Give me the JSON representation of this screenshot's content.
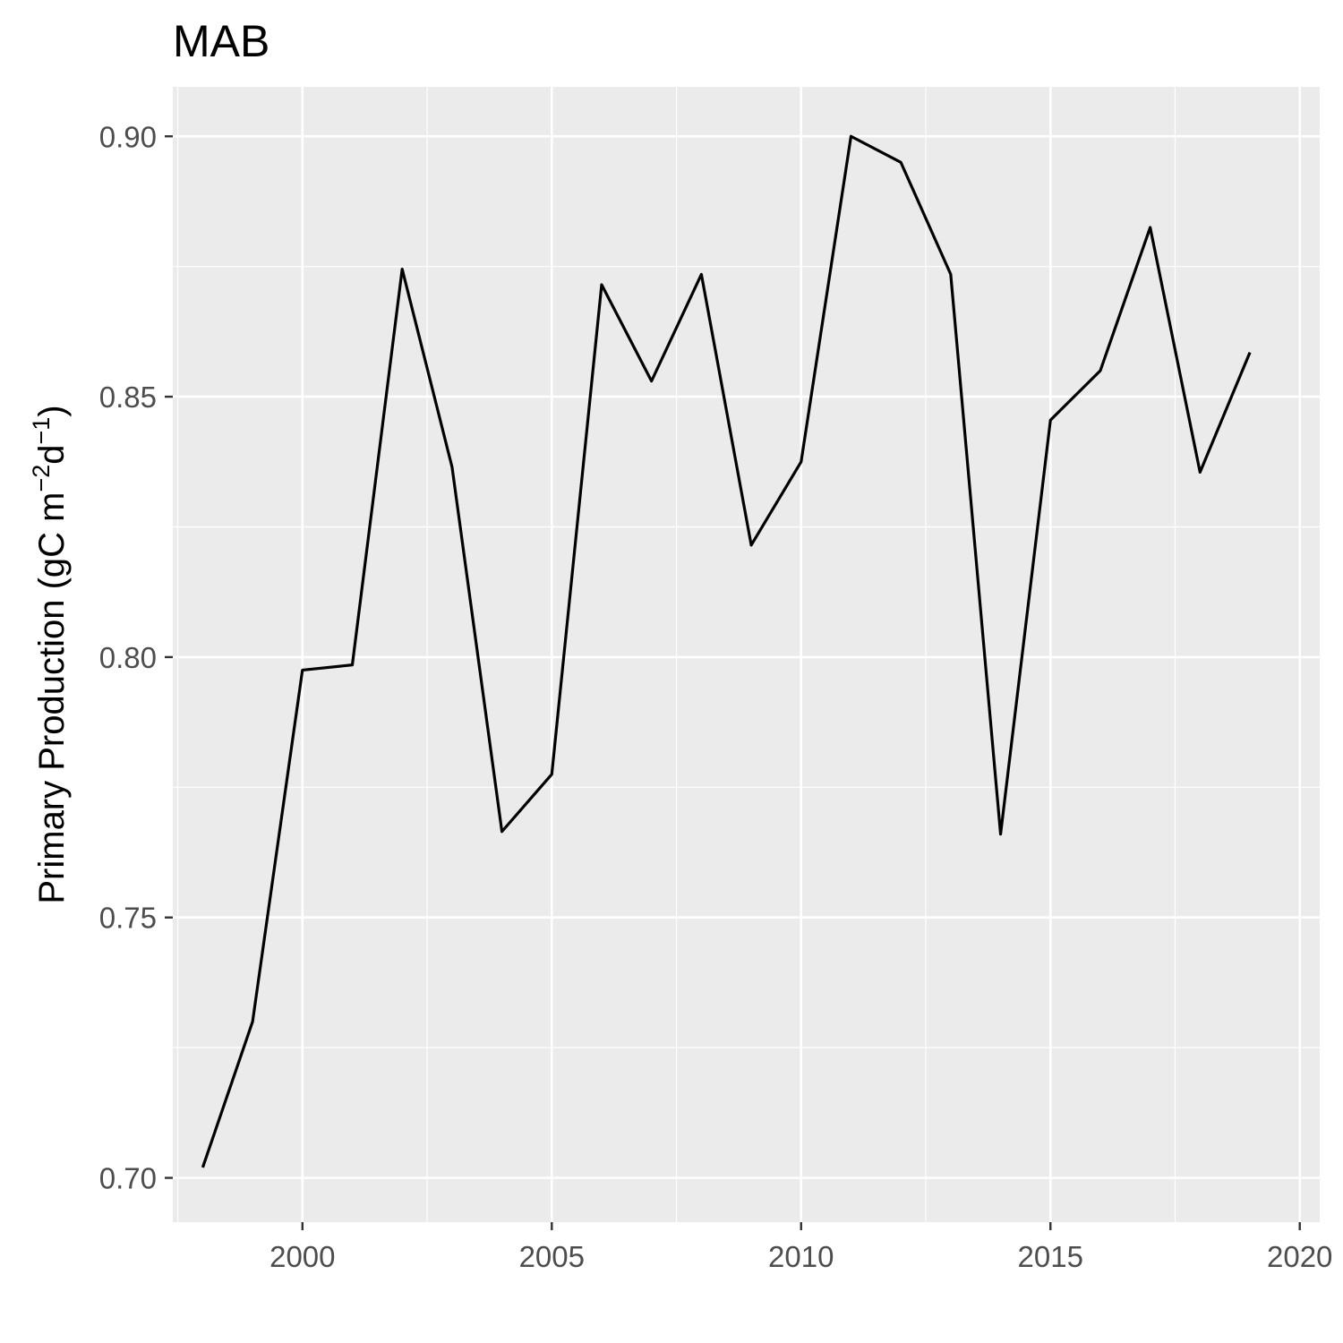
{
  "chart_data": {
    "type": "line",
    "title": "MAB",
    "xlabel": "",
    "ylabel": {
      "base": "Primary Production (gC m",
      "exp1": "−2",
      "mid": "d",
      "exp2": "−1",
      "end": ")"
    },
    "xlim": [
      1997.4,
      2020.4
    ],
    "ylim": [
      0.6915,
      0.9095
    ],
    "x_ticks": [
      2000,
      2005,
      2010,
      2015,
      2020
    ],
    "x_tick_labels": [
      "2000",
      "2005",
      "2010",
      "2015",
      "2020"
    ],
    "y_ticks": [
      0.7,
      0.75,
      0.8,
      0.85,
      0.9
    ],
    "y_tick_labels": [
      "0.70",
      "0.75",
      "0.80",
      "0.85",
      "0.90"
    ],
    "grid": true,
    "colors": {
      "panel": "#ebebeb",
      "grid": "#ffffff",
      "line": "#000000"
    },
    "series": [
      {
        "x": [
          1998,
          1999,
          2000,
          2001,
          2002,
          2003,
          2004,
          2005,
          2006,
          2007,
          2008,
          2009,
          2010,
          2011,
          2012,
          2013,
          2014,
          2015,
          2016,
          2017,
          2018,
          2019
        ],
        "values": [
          0.702,
          0.73,
          0.7975,
          0.7985,
          0.8745,
          0.8365,
          0.7665,
          0.7775,
          0.8715,
          0.853,
          0.8735,
          0.8215,
          0.8375,
          0.9,
          0.895,
          0.8735,
          0.766,
          0.8455,
          0.855,
          0.8825,
          0.8355,
          0.8585
        ]
      }
    ]
  }
}
